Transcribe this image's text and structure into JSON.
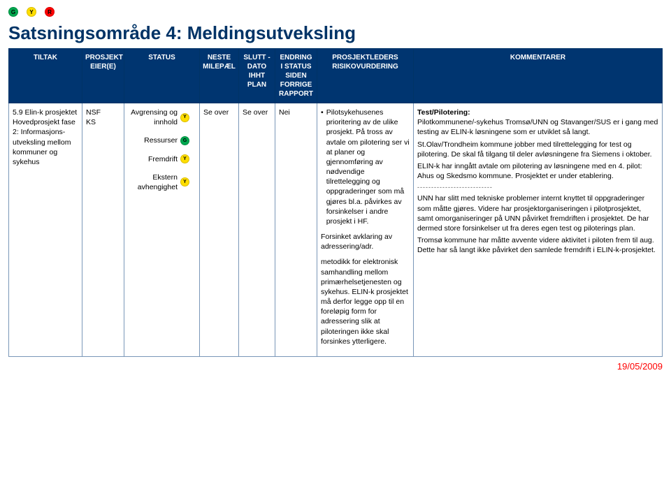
{
  "colors": {
    "green": "#00a84f",
    "yellow": "#ffde00",
    "red": "#ff0000",
    "header_bg": "#003570",
    "header_text": "#ffffff",
    "border": "#7a97b8",
    "title": "#003366"
  },
  "top_dots": [
    {
      "letter": "G",
      "color": "green"
    },
    {
      "letter": "Y",
      "color": "yellow"
    },
    {
      "letter": "R",
      "color": "red"
    }
  ],
  "title": "Satsningsområde 4: Meldingsutveksling",
  "columns": {
    "tiltak": "TILTAK",
    "eier": "PROSJEKT EIER(E)",
    "status": "STATUS",
    "neste": "NESTE MILEPÆL",
    "slutt": "SLUTT - DATO IHHT PLAN",
    "endring": "ENDRING I STATUS SIDEN FORRIGE RAPPORT",
    "risiko": "PROSJEKTLEDERS RISIKOVURDERING",
    "komm": "KOMMENTARER"
  },
  "row": {
    "tiltak": "5.9 Elin-k prosjektet Hovedprosjekt fase 2: Informasjons- utveksling mellom kommuner og sykehus",
    "eier": "NSF\nKS",
    "status_items": [
      {
        "label": "Avgrensing og innhold",
        "dot": "Y"
      },
      {
        "label": "Ressurser",
        "dot": "G"
      },
      {
        "label": "Fremdrift",
        "dot": "Y"
      },
      {
        "label": "Ekstern avhengighet",
        "dot": "Y"
      }
    ],
    "neste": "Se over",
    "slutt": "Se over",
    "endring": "Nei",
    "risiko": [
      "Pilotsykehusenes prioritering av de ulike prosjekt. På tross av avtale om pilotering ser vi at planer og gjennomføring av nødvendige tilrettelegging og oppgraderinger som må gjøres bl.a. påvirkes av forsinkelser i andre prosjekt i HF.",
      "Forsinket avklaring av adressering/adr.",
      "metodikk for elektronisk samhandling mellom primærhelsetjenesten og sykehus. ELIN-k prosjektet må derfor legge opp til en foreløpig form for adressering slik at piloteringen ikke skal forsinkes ytterligere."
    ],
    "komm_heading": "Test/Pilotering:",
    "komm_body": [
      "Pilotkommunene/-sykehus Tromsø/UNN og Stavanger/SUS er i gang med testing av ELIN-k løsningene som er utviklet så langt.",
      "St.Olav/Trondheim kommune jobber med tilrettelegging for test og pilotering. De skal få tilgang til deler avløsningene fra Siemens i oktober.",
      "ELIN-k har inngått avtale om pilotering av løsningene med en 4. pilot: Ahus og Skedsmo kommune. Prosjektet er under etablering.",
      "---------------------------",
      "UNN har slitt med tekniske problemer internt knyttet til oppgraderinger som måtte gjøres. Videre har prosjektorganiseringen i pilotprosjektet, samt omorganiseringer på UNN påvirket fremdriften i prosjektet. De har dermed store forsinkelser ut fra deres egen test og piloterings plan.",
      "Tromsø kommune har måtte avvente videre aktivitet i piloten frem til aug. Dette har så langt ikke påvirket den samlede fremdrift i ELIN-k-prosjektet."
    ]
  },
  "footer_date": "19/05/2009",
  "dot_letters": {
    "G": "G",
    "Y": "Y",
    "R": "R"
  },
  "dot_color_map": {
    "G": "green",
    "Y": "yellow",
    "R": "red"
  }
}
